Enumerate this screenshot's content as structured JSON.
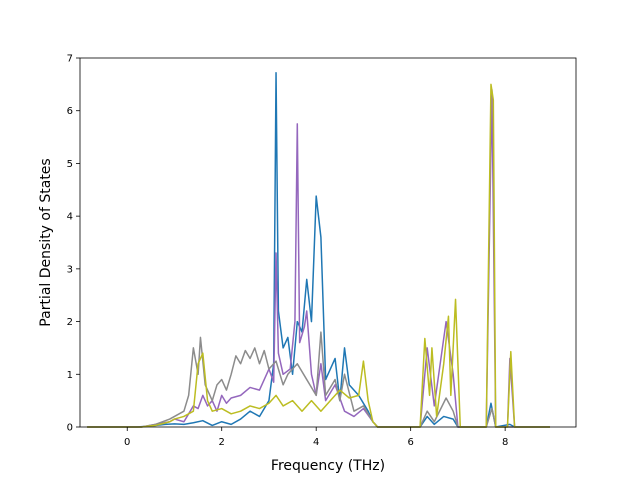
{
  "chart_data": {
    "type": "line",
    "title": "",
    "xlabel": "Frequency (THz)",
    "ylabel": "Partial Density of States",
    "xlim": [
      -1.0,
      9.5
    ],
    "ylim": [
      0,
      7.0
    ],
    "xticks": [
      0,
      2,
      4,
      6,
      8
    ],
    "yticks": [
      0,
      1,
      2,
      3,
      4,
      5,
      6,
      7
    ],
    "grid": false,
    "legend": "none",
    "series": [
      {
        "color": "#1f77b4",
        "points": [
          [
            -0.85,
            0
          ],
          [
            0.2,
            0
          ],
          [
            0.5,
            0.02
          ],
          [
            0.8,
            0.05
          ],
          [
            1.0,
            0.06
          ],
          [
            1.2,
            0.05
          ],
          [
            1.4,
            0.08
          ],
          [
            1.6,
            0.12
          ],
          [
            1.8,
            0.03
          ],
          [
            2.0,
            0.1
          ],
          [
            2.2,
            0.05
          ],
          [
            2.4,
            0.15
          ],
          [
            2.6,
            0.3
          ],
          [
            2.8,
            0.2
          ],
          [
            3.0,
            0.5
          ],
          [
            3.1,
            1.2
          ],
          [
            3.15,
            6.72
          ],
          [
            3.2,
            2.2
          ],
          [
            3.3,
            1.5
          ],
          [
            3.4,
            1.7
          ],
          [
            3.5,
            1.0
          ],
          [
            3.6,
            2.0
          ],
          [
            3.7,
            1.8
          ],
          [
            3.8,
            2.8
          ],
          [
            3.9,
            2.0
          ],
          [
            4.0,
            4.38
          ],
          [
            4.1,
            3.6
          ],
          [
            4.2,
            0.9
          ],
          [
            4.4,
            1.3
          ],
          [
            4.5,
            0.5
          ],
          [
            4.6,
            1.5
          ],
          [
            4.7,
            0.8
          ],
          [
            4.9,
            0.6
          ],
          [
            5.1,
            0.3
          ],
          [
            5.2,
            0.1
          ],
          [
            5.3,
            0
          ],
          [
            6.2,
            0
          ],
          [
            6.35,
            0.2
          ],
          [
            6.5,
            0.05
          ],
          [
            6.7,
            0.2
          ],
          [
            6.9,
            0.15
          ],
          [
            7.0,
            0
          ],
          [
            7.6,
            0
          ],
          [
            7.7,
            0.45
          ],
          [
            7.8,
            0
          ],
          [
            8.1,
            0.05
          ],
          [
            8.2,
            0
          ],
          [
            8.95,
            0
          ]
        ]
      },
      {
        "color": "#9467bd",
        "points": [
          [
            -0.85,
            0
          ],
          [
            0.3,
            0
          ],
          [
            0.6,
            0.05
          ],
          [
            0.9,
            0.1
          ],
          [
            1.0,
            0.15
          ],
          [
            1.2,
            0.1
          ],
          [
            1.3,
            0.25
          ],
          [
            1.4,
            0.4
          ],
          [
            1.5,
            0.35
          ],
          [
            1.6,
            0.6
          ],
          [
            1.7,
            0.4
          ],
          [
            1.8,
            0.5
          ],
          [
            1.9,
            0.3
          ],
          [
            2.0,
            0.6
          ],
          [
            2.1,
            0.45
          ],
          [
            2.2,
            0.55
          ],
          [
            2.4,
            0.6
          ],
          [
            2.6,
            0.75
          ],
          [
            2.8,
            0.7
          ],
          [
            3.0,
            1.1
          ],
          [
            3.1,
            0.85
          ],
          [
            3.15,
            3.3
          ],
          [
            3.2,
            1.4
          ],
          [
            3.3,
            1.0
          ],
          [
            3.45,
            1.1
          ],
          [
            3.55,
            2.0
          ],
          [
            3.6,
            5.75
          ],
          [
            3.65,
            1.6
          ],
          [
            3.75,
            1.9
          ],
          [
            3.8,
            2.2
          ],
          [
            3.9,
            1.0
          ],
          [
            4.0,
            0.6
          ],
          [
            4.1,
            1.2
          ],
          [
            4.2,
            0.5
          ],
          [
            4.4,
            0.8
          ],
          [
            4.6,
            0.3
          ],
          [
            4.8,
            0.2
          ],
          [
            5.0,
            0.35
          ],
          [
            5.2,
            0.1
          ],
          [
            5.3,
            0
          ],
          [
            6.2,
            0
          ],
          [
            6.35,
            1.5
          ],
          [
            6.5,
            0.4
          ],
          [
            6.75,
            2.0
          ],
          [
            6.9,
            1.0
          ],
          [
            7.0,
            0
          ],
          [
            7.6,
            0
          ],
          [
            7.72,
            6.4
          ],
          [
            7.8,
            0
          ],
          [
            8.05,
            0
          ],
          [
            8.1,
            1.3
          ],
          [
            8.2,
            0
          ],
          [
            8.95,
            0
          ]
        ]
      },
      {
        "color": "#8c8c8c",
        "points": [
          [
            -0.85,
            0
          ],
          [
            0.3,
            0
          ],
          [
            0.6,
            0.05
          ],
          [
            0.9,
            0.15
          ],
          [
            1.0,
            0.2
          ],
          [
            1.2,
            0.3
          ],
          [
            1.3,
            0.6
          ],
          [
            1.4,
            1.5
          ],
          [
            1.5,
            1.0
          ],
          [
            1.55,
            1.7
          ],
          [
            1.65,
            0.8
          ],
          [
            1.8,
            0.5
          ],
          [
            1.9,
            0.8
          ],
          [
            2.0,
            0.9
          ],
          [
            2.1,
            0.7
          ],
          [
            2.2,
            1.0
          ],
          [
            2.3,
            1.35
          ],
          [
            2.4,
            1.2
          ],
          [
            2.5,
            1.45
          ],
          [
            2.6,
            1.3
          ],
          [
            2.7,
            1.5
          ],
          [
            2.8,
            1.2
          ],
          [
            2.9,
            1.45
          ],
          [
            3.0,
            1.1
          ],
          [
            3.15,
            1.25
          ],
          [
            3.3,
            0.8
          ],
          [
            3.4,
            1.0
          ],
          [
            3.6,
            1.2
          ],
          [
            3.8,
            0.9
          ],
          [
            4.0,
            0.6
          ],
          [
            4.1,
            1.8
          ],
          [
            4.2,
            0.6
          ],
          [
            4.4,
            0.9
          ],
          [
            4.5,
            0.5
          ],
          [
            4.6,
            1.0
          ],
          [
            4.8,
            0.3
          ],
          [
            5.0,
            0.4
          ],
          [
            5.2,
            0.1
          ],
          [
            5.3,
            0
          ],
          [
            6.2,
            0
          ],
          [
            6.35,
            0.3
          ],
          [
            6.5,
            0.1
          ],
          [
            6.75,
            0.55
          ],
          [
            6.9,
            0.3
          ],
          [
            7.0,
            0
          ],
          [
            7.6,
            0
          ],
          [
            7.72,
            0.35
          ],
          [
            7.8,
            0
          ],
          [
            8.95,
            0
          ]
        ]
      },
      {
        "color": "#bcbd22",
        "points": [
          [
            -0.85,
            0
          ],
          [
            0.3,
            0
          ],
          [
            0.6,
            0.03
          ],
          [
            0.9,
            0.1
          ],
          [
            1.0,
            0.15
          ],
          [
            1.2,
            0.2
          ],
          [
            1.4,
            0.3
          ],
          [
            1.5,
            1.2
          ],
          [
            1.6,
            1.4
          ],
          [
            1.7,
            0.5
          ],
          [
            1.8,
            0.3
          ],
          [
            2.0,
            0.35
          ],
          [
            2.2,
            0.25
          ],
          [
            2.4,
            0.3
          ],
          [
            2.6,
            0.4
          ],
          [
            2.8,
            0.35
          ],
          [
            3.0,
            0.45
          ],
          [
            3.15,
            0.6
          ],
          [
            3.3,
            0.4
          ],
          [
            3.5,
            0.5
          ],
          [
            3.7,
            0.3
          ],
          [
            3.9,
            0.5
          ],
          [
            4.1,
            0.3
          ],
          [
            4.3,
            0.5
          ],
          [
            4.5,
            0.7
          ],
          [
            4.7,
            0.55
          ],
          [
            4.9,
            0.6
          ],
          [
            5.0,
            1.25
          ],
          [
            5.1,
            0.5
          ],
          [
            5.2,
            0.1
          ],
          [
            5.3,
            0
          ],
          [
            6.2,
            0
          ],
          [
            6.3,
            1.68
          ],
          [
            6.4,
            0.6
          ],
          [
            6.45,
            1.5
          ],
          [
            6.55,
            0.2
          ],
          [
            6.7,
            1.2
          ],
          [
            6.8,
            2.1
          ],
          [
            6.85,
            0.6
          ],
          [
            6.95,
            2.42
          ],
          [
            7.05,
            0
          ],
          [
            7.6,
            0
          ],
          [
            7.7,
            6.5
          ],
          [
            7.75,
            6.2
          ],
          [
            7.8,
            0
          ],
          [
            8.05,
            0
          ],
          [
            8.12,
            1.43
          ],
          [
            8.2,
            0
          ],
          [
            8.95,
            0
          ]
        ]
      }
    ]
  }
}
